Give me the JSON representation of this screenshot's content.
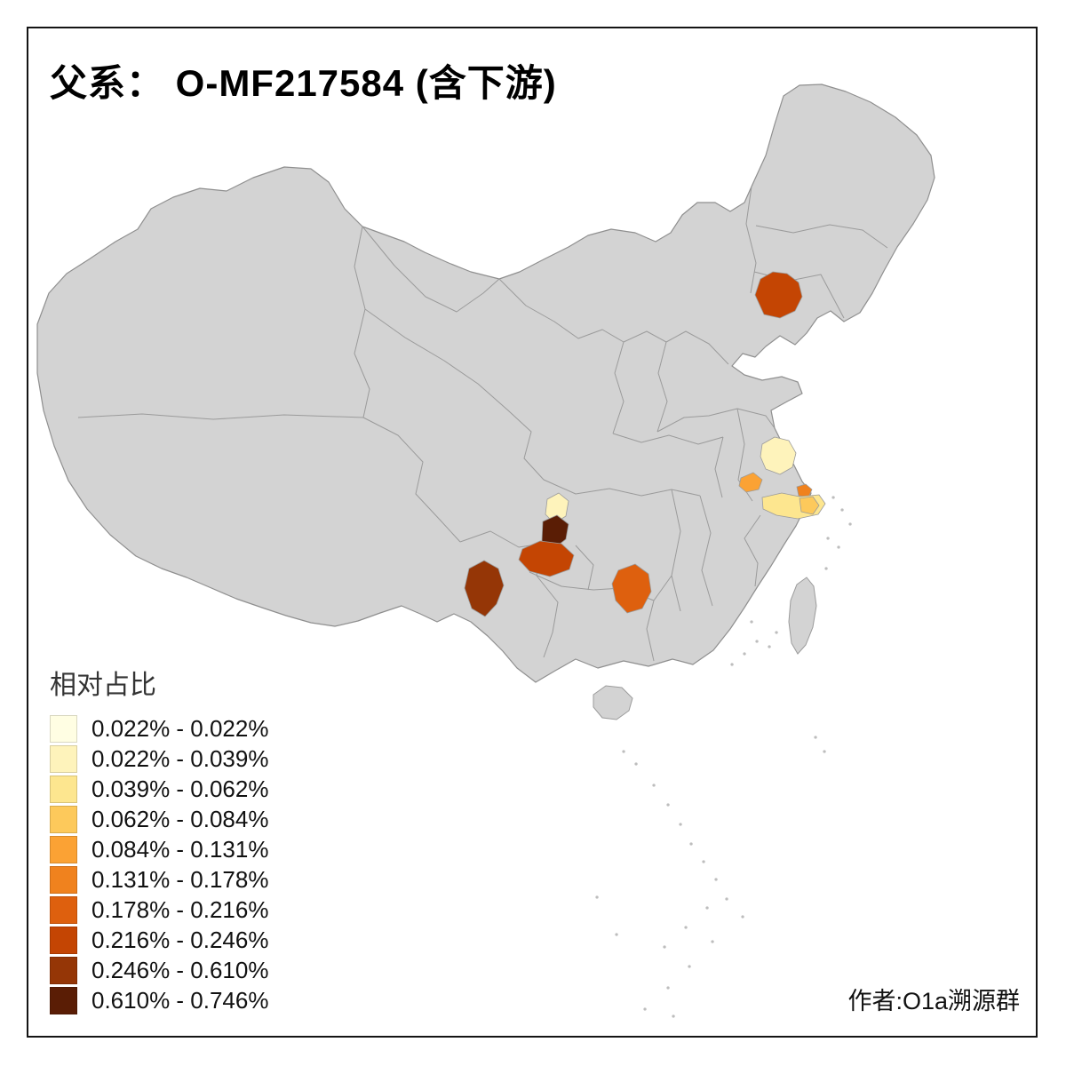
{
  "figure": {
    "title": "父系： O-MF217584 (含下游)",
    "author_credit": "作者:O1a溯源群"
  },
  "legend": {
    "title": "相对占比",
    "items": [
      {
        "label": "0.022% - 0.022%",
        "color": "#FFFEE3"
      },
      {
        "label": "0.022% - 0.039%",
        "color": "#FEF3BB"
      },
      {
        "label": "0.039% - 0.062%",
        "color": "#FDE68F"
      },
      {
        "label": "0.062% - 0.084%",
        "color": "#FDC95B"
      },
      {
        "label": "0.084% - 0.131%",
        "color": "#FBA234"
      },
      {
        "label": "0.131% - 0.178%",
        "color": "#F0821E"
      },
      {
        "label": "0.178% - 0.216%",
        "color": "#DE600E"
      },
      {
        "label": "0.216% - 0.246%",
        "color": "#C44503"
      },
      {
        "label": "0.246% - 0.610%",
        "color": "#953606"
      },
      {
        "label": "0.610% - 0.746%",
        "color": "#5A1D05"
      }
    ]
  },
  "map": {
    "land_color": "#d3d3d3",
    "coast_color": "#8f8f8f",
    "province_border_color": "#9b9b9b",
    "sea_color": "#ffffff"
  },
  "chart_data": {
    "type": "choropleth",
    "title": "父系： O-MF217584 (含下游)",
    "legend_title": "相对占比",
    "value_unit": "percent",
    "class_breaks": [
      0.022,
      0.022,
      0.039,
      0.062,
      0.084,
      0.131,
      0.178,
      0.216,
      0.246,
      0.61,
      0.746
    ],
    "regions": [
      {
        "id": "southern-liaoning",
        "class_index": 7,
        "range": "0.216% - 0.246%"
      },
      {
        "id": "central-jiangsu",
        "class_index": 1,
        "range": "0.022% - 0.039%"
      },
      {
        "id": "southern-anhui",
        "class_index": 4,
        "range": "0.084% - 0.131%"
      },
      {
        "id": "shanghai",
        "class_index": 5,
        "range": "0.131% - 0.178%"
      },
      {
        "id": "northern-zhejiang",
        "class_index": 2,
        "range": "0.039% - 0.062%"
      },
      {
        "id": "northeast-zhejiang",
        "class_index": 3,
        "range": "0.062% - 0.084%"
      },
      {
        "id": "chongqing-north",
        "class_index": 1,
        "range": "0.022% - 0.039%"
      },
      {
        "id": "chongqing-south",
        "class_index": 9,
        "range": "0.610% - 0.746%"
      },
      {
        "id": "central-guizhou",
        "class_index": 7,
        "range": "0.216% - 0.246%"
      },
      {
        "id": "western-yunnan",
        "class_index": 8,
        "range": "0.246% - 0.610%"
      },
      {
        "id": "northern-guangxi",
        "class_index": 6,
        "range": "0.178% - 0.216%"
      }
    ]
  }
}
